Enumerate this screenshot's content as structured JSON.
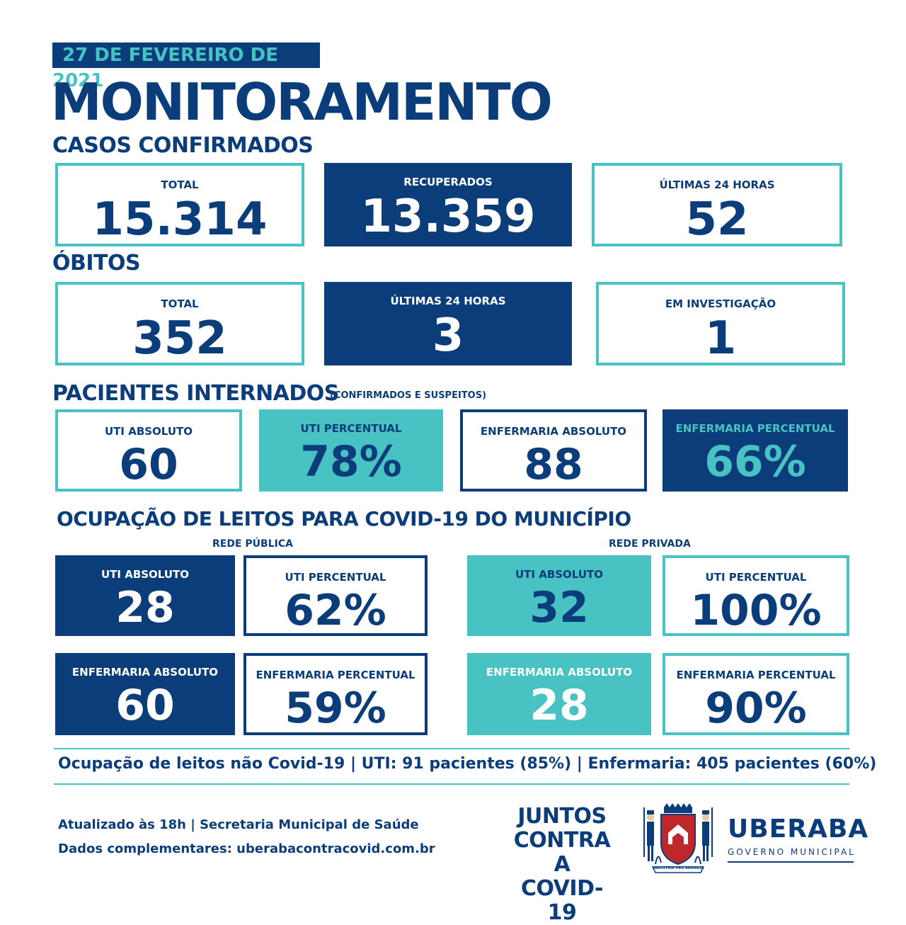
{
  "date": "27 DE FEVEREIRO DE 2021",
  "title": "MONITORAMENTO",
  "casos": {
    "heading": "CASOS CONFIRMADOS",
    "total": {
      "label": "TOTAL",
      "value": "15.314"
    },
    "recuperados": {
      "label": "RECUPERADOS",
      "value": "13.359"
    },
    "ultimas24": {
      "label": "ÚLTIMAS 24 HORAS",
      "value": "52"
    }
  },
  "obitos": {
    "heading": "ÓBITOS",
    "total": {
      "label": "TOTAL",
      "value": "352"
    },
    "ultimas24": {
      "label": "ÚLTIMAS 24 HORAS",
      "value": "3"
    },
    "investigacao": {
      "label": "EM INVESTIGAÇÃO",
      "value": "1"
    }
  },
  "internados": {
    "heading": "PACIENTES INTERNADOS",
    "note": "(CONFIRMADOS E SUSPEITOS)",
    "uti_abs": {
      "label": "UTI ABSOLUTO",
      "value": "60"
    },
    "uti_pct": {
      "label": "UTI PERCENTUAL",
      "value": "78%"
    },
    "enf_abs": {
      "label": "ENFERMARIA ABSOLUTO",
      "value": "88"
    },
    "enf_pct": {
      "label": "ENFERMARIA PERCENTUAL",
      "value": "66%"
    }
  },
  "ocupacao": {
    "heading": "OCUPAÇÃO DE LEITOS PARA COVID-19 DO MUNICÍPIO",
    "publica": {
      "label": "REDE PÚBLICA",
      "uti_abs": {
        "label": "UTI ABSOLUTO",
        "value": "28"
      },
      "uti_pct": {
        "label": "UTI PERCENTUAL",
        "value": "62%"
      },
      "enf_abs": {
        "label": "ENFERMARIA ABSOLUTO",
        "value": "60"
      },
      "enf_pct": {
        "label": "ENFERMARIA PERCENTUAL",
        "value": "59%"
      }
    },
    "privada": {
      "label": "REDE PRIVADA",
      "uti_abs": {
        "label": "UTI ABSOLUTO",
        "value": "32"
      },
      "uti_pct": {
        "label": "UTI PERCENTUAL",
        "value": "100%"
      },
      "enf_abs": {
        "label": "ENFERMARIA ABSOLUTO",
        "value": "28"
      },
      "enf_pct": {
        "label": "ENFERMARIA PERCENTUAL",
        "value": "90%"
      }
    }
  },
  "nao_covid": "Ocupação de leitos não Covid-19 | UTI: 91 pacientes (85%) | Enfermaria: 405 pacientes (60%)",
  "footer": {
    "updated": "Atualizado às 18h | Secretaria Municipal de Saúde",
    "dados": "Dados complementares: uberabacontracovid.com.br",
    "juntos": [
      "JUNTOS",
      "CONTRA A",
      "COVID-19"
    ],
    "city": "UBERABA",
    "gov": "GOVERNO MUNICIPAL",
    "crest_motto": "INDUSTRIA PRO BRASILIA"
  },
  "colors": {
    "navy": "#0b3d7a",
    "teal": "#49c2c4",
    "red": "#c0272d"
  }
}
